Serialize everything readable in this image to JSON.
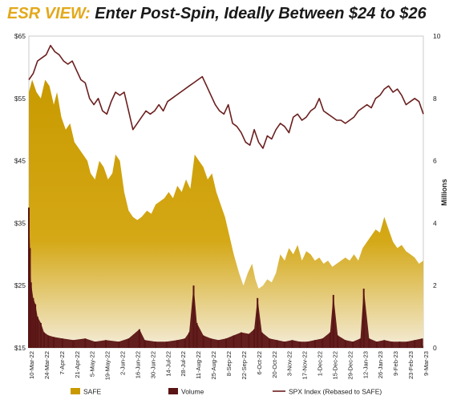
{
  "title": {
    "prefix": "ESR VIEW:",
    "main": "Enter Post-Spin, Ideally Between $24 to $26"
  },
  "colors": {
    "safe_fill": "#C99A00",
    "volume_fill": "#5A1414",
    "spx_line": "#6B1E1E",
    "title_prefix": "#E3A81B"
  },
  "chart_data": {
    "type": "area",
    "y_left": {
      "min": 15,
      "max": 65,
      "ticks": [
        "$15",
        "$25",
        "$35",
        "$45",
        "$55",
        "$65"
      ],
      "values": [
        15,
        25,
        35,
        45,
        55,
        65
      ]
    },
    "y_right": {
      "min": 0,
      "max": 10,
      "label": "Millions",
      "ticks": [
        "0",
        "2",
        "4",
        "6",
        "8",
        "10"
      ],
      "values": [
        0,
        2,
        4,
        6,
        8,
        10
      ]
    },
    "x_ticks": [
      "10-Mar-22",
      "24-Mar-22",
      "7-Apr-22",
      "21-Apr-22",
      "5-May-22",
      "19-May-22",
      "2-Jun-22",
      "16-Jun-22",
      "30-Jun-22",
      "14-Jul-22",
      "28-Jul-22",
      "11-Aug-22",
      "25-Aug-22",
      "8-Sep-22",
      "22-Sep-22",
      "6-Oct-22",
      "20-Oct-22",
      "3-Nov-22",
      "17-Nov-22",
      "1-Dec-22",
      "15-Dec-22",
      "29-Dec-22",
      "12-Jan-23",
      "26-Jan-23",
      "9-Feb-23",
      "23-Feb-23",
      "9-Mar-23"
    ],
    "x_start": "2022-03-10",
    "x_end": "2023-03-09",
    "series": [
      {
        "name": "SAFE",
        "type": "area",
        "axis": "left",
        "points": [
          [
            "2022-03-10",
            56
          ],
          [
            "2022-03-13",
            58
          ],
          [
            "2022-03-17",
            56
          ],
          [
            "2022-03-21",
            55
          ],
          [
            "2022-03-25",
            58
          ],
          [
            "2022-03-29",
            57
          ],
          [
            "2022-04-02",
            54
          ],
          [
            "2022-04-05",
            56
          ],
          [
            "2022-04-09",
            52
          ],
          [
            "2022-04-13",
            50
          ],
          [
            "2022-04-17",
            51
          ],
          [
            "2022-04-21",
            48
          ],
          [
            "2022-04-25",
            47
          ],
          [
            "2022-04-29",
            46
          ],
          [
            "2022-05-03",
            45
          ],
          [
            "2022-05-06",
            43
          ],
          [
            "2022-05-10",
            42
          ],
          [
            "2022-05-14",
            45
          ],
          [
            "2022-05-18",
            44
          ],
          [
            "2022-05-22",
            42
          ],
          [
            "2022-05-26",
            43
          ],
          [
            "2022-05-29",
            46
          ],
          [
            "2022-06-02",
            45
          ],
          [
            "2022-06-06",
            40
          ],
          [
            "2022-06-10",
            37
          ],
          [
            "2022-06-14",
            36
          ],
          [
            "2022-06-18",
            35.5
          ],
          [
            "2022-06-22",
            36
          ],
          [
            "2022-06-27",
            37
          ],
          [
            "2022-07-01",
            36.5
          ],
          [
            "2022-07-05",
            38
          ],
          [
            "2022-07-09",
            38.5
          ],
          [
            "2022-07-13",
            39
          ],
          [
            "2022-07-17",
            40
          ],
          [
            "2022-07-21",
            39
          ],
          [
            "2022-07-25",
            41
          ],
          [
            "2022-07-29",
            40
          ],
          [
            "2022-08-02",
            42
          ],
          [
            "2022-08-06",
            40.5
          ],
          [
            "2022-08-10",
            46
          ],
          [
            "2022-08-14",
            45
          ],
          [
            "2022-08-18",
            44
          ],
          [
            "2022-08-22",
            42
          ],
          [
            "2022-08-26",
            43
          ],
          [
            "2022-08-30",
            40
          ],
          [
            "2022-09-03",
            38
          ],
          [
            "2022-09-07",
            36
          ],
          [
            "2022-09-11",
            33
          ],
          [
            "2022-09-15",
            30
          ],
          [
            "2022-09-20",
            27
          ],
          [
            "2022-09-24",
            25
          ],
          [
            "2022-09-28",
            27
          ],
          [
            "2022-10-02",
            28.5
          ],
          [
            "2022-10-05",
            26
          ],
          [
            "2022-10-08",
            24.5
          ],
          [
            "2022-10-12",
            25
          ],
          [
            "2022-10-16",
            26
          ],
          [
            "2022-10-20",
            25.5
          ],
          [
            "2022-10-24",
            27
          ],
          [
            "2022-10-28",
            30
          ],
          [
            "2022-11-01",
            29
          ],
          [
            "2022-11-05",
            31
          ],
          [
            "2022-11-09",
            30
          ],
          [
            "2022-11-13",
            31.5
          ],
          [
            "2022-11-17",
            29
          ],
          [
            "2022-11-21",
            30.5
          ],
          [
            "2022-11-25",
            30
          ],
          [
            "2022-11-29",
            29
          ],
          [
            "2022-12-03",
            29.5
          ],
          [
            "2022-12-07",
            28.5
          ],
          [
            "2022-12-11",
            29
          ],
          [
            "2022-12-15",
            28
          ],
          [
            "2022-12-19",
            28.5
          ],
          [
            "2022-12-23",
            29
          ],
          [
            "2022-12-27",
            29.5
          ],
          [
            "2022-12-31",
            29
          ],
          [
            "2023-01-04",
            30
          ],
          [
            "2023-01-08",
            29
          ],
          [
            "2023-01-12",
            31
          ],
          [
            "2023-01-16",
            32
          ],
          [
            "2023-01-20",
            33
          ],
          [
            "2023-01-24",
            34
          ],
          [
            "2023-01-28",
            33.5
          ],
          [
            "2023-02-01",
            36
          ],
          [
            "2023-02-05",
            34
          ],
          [
            "2023-02-09",
            32
          ],
          [
            "2023-02-13",
            31
          ],
          [
            "2023-02-17",
            31.5
          ],
          [
            "2023-02-21",
            30.5
          ],
          [
            "2023-02-25",
            30
          ],
          [
            "2023-03-01",
            29.5
          ],
          [
            "2023-03-05",
            28.5
          ],
          [
            "2023-03-09",
            29
          ]
        ]
      },
      {
        "name": "Volume",
        "type": "bar",
        "axis": "right",
        "points": [
          [
            "2022-03-10",
            4.5
          ],
          [
            "2022-03-11",
            3.2
          ],
          [
            "2022-03-12",
            2.1
          ],
          [
            "2022-03-14",
            1.6
          ],
          [
            "2022-03-16",
            1.4
          ],
          [
            "2022-03-18",
            1.0
          ],
          [
            "2022-03-21",
            0.8
          ],
          [
            "2022-03-24",
            0.5
          ],
          [
            "2022-03-28",
            0.4
          ],
          [
            "2022-04-02",
            0.35
          ],
          [
            "2022-04-10",
            0.3
          ],
          [
            "2022-04-20",
            0.25
          ],
          [
            "2022-05-01",
            0.3
          ],
          [
            "2022-05-10",
            0.2
          ],
          [
            "2022-05-20",
            0.25
          ],
          [
            "2022-06-01",
            0.2
          ],
          [
            "2022-06-10",
            0.3
          ],
          [
            "2022-06-20",
            0.6
          ],
          [
            "2022-06-25",
            0.25
          ],
          [
            "2022-07-05",
            0.2
          ],
          [
            "2022-07-15",
            0.2
          ],
          [
            "2022-07-25",
            0.25
          ],
          [
            "2022-08-01",
            0.3
          ],
          [
            "2022-08-05",
            0.5
          ],
          [
            "2022-08-09",
            2.0
          ],
          [
            "2022-08-12",
            0.8
          ],
          [
            "2022-08-18",
            0.4
          ],
          [
            "2022-08-25",
            0.3
          ],
          [
            "2022-09-01",
            0.25
          ],
          [
            "2022-09-08",
            0.3
          ],
          [
            "2022-09-15",
            0.4
          ],
          [
            "2022-09-22",
            0.5
          ],
          [
            "2022-09-29",
            0.45
          ],
          [
            "2022-10-04",
            0.6
          ],
          [
            "2022-10-07",
            1.6
          ],
          [
            "2022-10-11",
            0.5
          ],
          [
            "2022-10-18",
            0.3
          ],
          [
            "2022-10-25",
            0.25
          ],
          [
            "2022-11-01",
            0.2
          ],
          [
            "2022-11-08",
            0.25
          ],
          [
            "2022-11-15",
            0.2
          ],
          [
            "2022-11-22",
            0.2
          ],
          [
            "2022-11-29",
            0.25
          ],
          [
            "2022-12-06",
            0.3
          ],
          [
            "2022-12-13",
            0.5
          ],
          [
            "2022-12-16",
            1.7
          ],
          [
            "2022-12-20",
            0.4
          ],
          [
            "2022-12-27",
            0.25
          ],
          [
            "2023-01-03",
            0.2
          ],
          [
            "2023-01-10",
            0.3
          ],
          [
            "2023-01-13",
            1.9
          ],
          [
            "2023-01-18",
            0.3
          ],
          [
            "2023-01-25",
            0.2
          ],
          [
            "2023-02-01",
            0.25
          ],
          [
            "2023-02-08",
            0.2
          ],
          [
            "2023-02-15",
            0.2
          ],
          [
            "2023-02-22",
            0.2
          ],
          [
            "2023-03-01",
            0.25
          ],
          [
            "2023-03-08",
            0.3
          ]
        ]
      },
      {
        "name": "SPX Index (Rebased to SAFE)",
        "type": "line",
        "axis": "left",
        "points": [
          [
            "2022-03-10",
            58
          ],
          [
            "2022-03-14",
            59
          ],
          [
            "2022-03-18",
            61
          ],
          [
            "2022-03-22",
            61.5
          ],
          [
            "2022-03-26",
            62
          ],
          [
            "2022-03-30",
            63.5
          ],
          [
            "2022-04-03",
            62.5
          ],
          [
            "2022-04-07",
            62
          ],
          [
            "2022-04-11",
            61
          ],
          [
            "2022-04-15",
            60.5
          ],
          [
            "2022-04-19",
            61
          ],
          [
            "2022-04-23",
            59.5
          ],
          [
            "2022-04-27",
            58
          ],
          [
            "2022-05-01",
            57.5
          ],
          [
            "2022-05-05",
            55
          ],
          [
            "2022-05-09",
            54
          ],
          [
            "2022-05-13",
            55
          ],
          [
            "2022-05-17",
            53
          ],
          [
            "2022-05-21",
            52.5
          ],
          [
            "2022-05-25",
            54.5
          ],
          [
            "2022-05-29",
            56
          ],
          [
            "2022-06-02",
            55.5
          ],
          [
            "2022-06-06",
            56
          ],
          [
            "2022-06-10",
            53
          ],
          [
            "2022-06-14",
            50
          ],
          [
            "2022-06-18",
            51
          ],
          [
            "2022-06-22",
            52
          ],
          [
            "2022-06-26",
            53
          ],
          [
            "2022-06-30",
            52.5
          ],
          [
            "2022-07-04",
            53
          ],
          [
            "2022-07-08",
            54
          ],
          [
            "2022-07-12",
            53
          ],
          [
            "2022-07-16",
            54.5
          ],
          [
            "2022-07-20",
            55
          ],
          [
            "2022-07-24",
            55.5
          ],
          [
            "2022-07-28",
            56
          ],
          [
            "2022-08-01",
            56.5
          ],
          [
            "2022-08-05",
            57
          ],
          [
            "2022-08-09",
            57.5
          ],
          [
            "2022-08-13",
            58
          ],
          [
            "2022-08-17",
            58.5
          ],
          [
            "2022-08-21",
            57
          ],
          [
            "2022-08-25",
            55.5
          ],
          [
            "2022-08-29",
            54
          ],
          [
            "2022-09-02",
            53
          ],
          [
            "2022-09-06",
            52.5
          ],
          [
            "2022-09-10",
            54
          ],
          [
            "2022-09-14",
            51
          ],
          [
            "2022-09-18",
            50.5
          ],
          [
            "2022-09-22",
            49.5
          ],
          [
            "2022-09-26",
            48
          ],
          [
            "2022-09-30",
            47.5
          ],
          [
            "2022-10-04",
            50
          ],
          [
            "2022-10-08",
            48
          ],
          [
            "2022-10-12",
            47
          ],
          [
            "2022-10-16",
            49
          ],
          [
            "2022-10-20",
            48.5
          ],
          [
            "2022-10-24",
            50
          ],
          [
            "2022-10-28",
            51
          ],
          [
            "2022-11-01",
            50.5
          ],
          [
            "2022-11-05",
            49.5
          ],
          [
            "2022-11-09",
            52
          ],
          [
            "2022-11-13",
            52.5
          ],
          [
            "2022-11-17",
            51.5
          ],
          [
            "2022-11-21",
            52
          ],
          [
            "2022-11-25",
            53
          ],
          [
            "2022-11-29",
            53.5
          ],
          [
            "2022-12-03",
            55
          ],
          [
            "2022-12-07",
            53
          ],
          [
            "2022-12-11",
            52.5
          ],
          [
            "2022-12-15",
            52
          ],
          [
            "2022-12-19",
            51.5
          ],
          [
            "2022-12-23",
            51.5
          ],
          [
            "2022-12-27",
            51
          ],
          [
            "2022-12-31",
            51.5
          ],
          [
            "2023-01-04",
            52
          ],
          [
            "2023-01-08",
            53
          ],
          [
            "2023-01-12",
            53.5
          ],
          [
            "2023-01-16",
            54
          ],
          [
            "2023-01-20",
            53.5
          ],
          [
            "2023-01-24",
            55
          ],
          [
            "2023-01-28",
            55.5
          ],
          [
            "2023-02-01",
            56.5
          ],
          [
            "2023-02-05",
            57
          ],
          [
            "2023-02-09",
            56
          ],
          [
            "2023-02-13",
            56.5
          ],
          [
            "2023-02-17",
            55.5
          ],
          [
            "2023-02-21",
            54
          ],
          [
            "2023-02-25",
            54.5
          ],
          [
            "2023-03-01",
            55
          ],
          [
            "2023-03-05",
            54.5
          ],
          [
            "2023-03-09",
            52.5
          ]
        ]
      }
    ],
    "legend": {
      "position": "bottom",
      "items": [
        {
          "label": "SAFE",
          "kind": "area-swatch"
        },
        {
          "label": "Volume",
          "kind": "bar-swatch"
        },
        {
          "label": "SPX Index (Rebased to SAFE)",
          "kind": "line"
        }
      ]
    },
    "grid": false
  }
}
